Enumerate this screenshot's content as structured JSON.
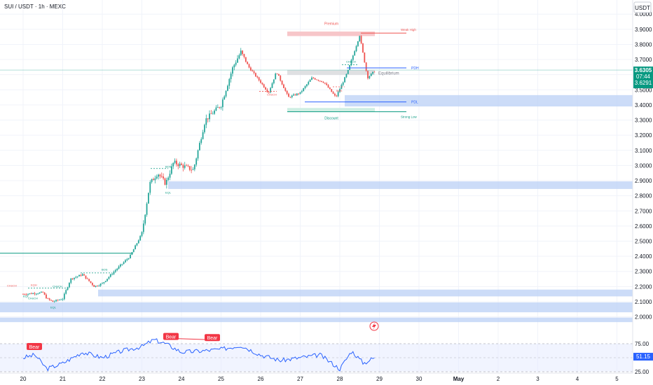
{
  "header": {
    "title": "SUI / USDT · 1h · MEXC",
    "currency": "USDT"
  },
  "price_axis": {
    "ticks": [
      "4.0000",
      "3.9000",
      "3.8000",
      "3.7000",
      "3.6000",
      "3.5000",
      "3.4000",
      "3.3000",
      "3.2000",
      "3.1000",
      "3.0000",
      "2.9000",
      "2.8000",
      "2.7000",
      "2.6000",
      "2.5000",
      "2.4000",
      "2.3000",
      "2.2000",
      "2.1000",
      "2.0000"
    ],
    "last_price": "3.6305",
    "countdown": "07:44",
    "prev_price": "3.6291"
  },
  "rsi_axis": {
    "ticks": [
      "75.00",
      "25.00"
    ],
    "value": "51.15"
  },
  "time_axis": {
    "ticks": [
      "20",
      "21",
      "22",
      "23",
      "24",
      "25",
      "26",
      "27",
      "28",
      "29",
      "30",
      "May",
      "2",
      "3",
      "4",
      "5"
    ]
  },
  "labels": {
    "premium": "Premium",
    "discount": "Discount",
    "equilibrium": "Equilibrium",
    "pdh": "PDH",
    "pdl": "PDL",
    "weak_high": "Weak High",
    "strong_low": "Strong Low",
    "choch": "CHoCH",
    "bos": "BOS",
    "eqh": "EQH",
    "eql": "EQL",
    "bear": "Bear"
  },
  "colors": {
    "up": "#26a69a",
    "down": "#ef5350",
    "rsi_line": "#2962ff",
    "zone_blue": "#bbd0f5",
    "premium_zone": "#f7c6c9",
    "discount_zone": "#cfeee3",
    "price_badge": "#089981",
    "bear_badge": "#f23645"
  },
  "chart_data": {
    "type": "candlestick",
    "symbol": "SUI / USDT",
    "interval": "1h",
    "exchange": "MEXC",
    "price_range": [
      1.97,
      4.02
    ],
    "days": [
      "20",
      "21",
      "22",
      "23",
      "24",
      "25",
      "26",
      "27",
      "28",
      "29"
    ],
    "path_anchors": [
      [
        "20",
        2.15
      ],
      [
        "20.5",
        2.16
      ],
      [
        "20.6",
        2.12
      ],
      [
        "20.75",
        2.1
      ],
      [
        "21",
        2.12
      ],
      [
        "21.2",
        2.25
      ],
      [
        "21.5",
        2.28
      ],
      [
        "21.8",
        2.2
      ],
      [
        "22",
        2.22
      ],
      [
        "22.3",
        2.3
      ],
      [
        "22.7",
        2.4
      ],
      [
        "23",
        2.55
      ],
      [
        "23.2",
        2.88
      ],
      [
        "23.4",
        2.95
      ],
      [
        "23.6",
        2.88
      ],
      [
        "23.8",
        3.02
      ],
      [
        "24",
        3.0
      ],
      [
        "24.3",
        2.97
      ],
      [
        "24.6",
        3.3
      ],
      [
        "25",
        3.4
      ],
      [
        "25.3",
        3.65
      ],
      [
        "25.5",
        3.75
      ],
      [
        "25.7",
        3.65
      ],
      [
        "26",
        3.55
      ],
      [
        "26.2",
        3.48
      ],
      [
        "26.4",
        3.62
      ],
      [
        "26.7",
        3.45
      ],
      [
        "27",
        3.48
      ],
      [
        "27.3",
        3.58
      ],
      [
        "27.6",
        3.55
      ],
      [
        "27.9",
        3.45
      ],
      [
        "28.2",
        3.62
      ],
      [
        "28.5",
        3.86
      ],
      [
        "28.7",
        3.58
      ],
      [
        "28.9",
        3.63
      ]
    ],
    "last_price": 3.6305,
    "levels": {
      "pdh": 3.645,
      "pdl": 3.42,
      "weak_high": 3.875,
      "strong_low": 3.355,
      "equilibrium": 3.615
    },
    "rsi": {
      "period": 14,
      "current": 51.15,
      "bands": [
        25,
        75
      ],
      "anchors": [
        [
          "20",
          50
        ],
        [
          "20.3",
          55
        ],
        [
          "20.6",
          30
        ],
        [
          "21",
          40
        ],
        [
          "21.5",
          60
        ],
        [
          "22",
          50
        ],
        [
          "22.5",
          62
        ],
        [
          "23",
          70
        ],
        [
          "23.3",
          82
        ],
        [
          "23.6",
          75
        ],
        [
          "24",
          60
        ],
        [
          "24.5",
          62
        ],
        [
          "25",
          65
        ],
        [
          "25.5",
          72
        ],
        [
          "26",
          55
        ],
        [
          "26.5",
          45
        ],
        [
          "27",
          50
        ],
        [
          "27.5",
          55
        ],
        [
          "28",
          30
        ],
        [
          "28.3",
          62
        ],
        [
          "28.6",
          40
        ],
        [
          "28.9",
          51
        ]
      ]
    }
  }
}
